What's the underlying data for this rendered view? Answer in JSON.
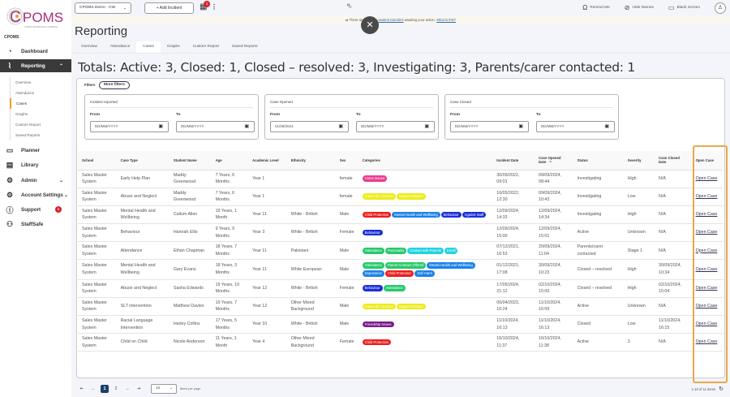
{
  "brand": {
    "logo_text": "CPOMS",
    "logo_sub": "A STAR TECHNOLOGY COMPANY",
    "section": "CPOMS"
  },
  "sidebar": {
    "dashboard": "Dashboard",
    "reporting": "Reporting",
    "reporting_sub": [
      "Overview",
      "Attendance",
      "Cases",
      "Graphs",
      "Custom Report",
      "Saved Reports"
    ],
    "planner": "Planner",
    "library": "Library",
    "admin": "Admin",
    "account_settings": "Account Settings",
    "support": "Support",
    "support_badge": "1",
    "staffsafe": "StaffSafe"
  },
  "topbar": {
    "school_select": "CPOMS Demo - CW",
    "add_incident": "+ Add Incident",
    "notif_count": "1",
    "remind_me": "Remind Me",
    "hide_names": "Hide Names",
    "blank_screen": "Blank Screen"
  },
  "banner": {
    "prefix": "⇄ There are possible ",
    "link": "student transfers",
    "middle": " awaiting your action. ",
    "help_link": "What is this?"
  },
  "page": {
    "title": "Reporting",
    "tabs": [
      "Overview",
      "Attendance",
      "Cases",
      "Graphs",
      "Custom Report",
      "Saved Reports"
    ],
    "active_tab": "Cases",
    "totals": "Totals: Active: 3, Closed: 1, Closed – resolved: 3, Investigating: 3, Parents/carer contacted: 1"
  },
  "filters": {
    "label": "Filters",
    "more_filters": "More filters",
    "groups": [
      {
        "title": "Incident reported",
        "from_label": "From",
        "to_label": "To",
        "from_value": "DD/MM/YYYY",
        "to_value": "DD/MM/YYYY"
      },
      {
        "title": "Case Opened",
        "from_label": "From",
        "to_label": "To",
        "from_value": "01/09/2024",
        "to_value": "DD/MM/YYYY"
      },
      {
        "title": "Case Closed",
        "from_label": "From",
        "to_label": "To",
        "from_value": "DD/MM/YYYY",
        "to_value": "DD/MM/YYYY"
      }
    ]
  },
  "table": {
    "columns": [
      "School",
      "Case Type",
      "Student Name",
      "Age",
      "Academic Level",
      "Ethnicity",
      "Sex",
      "Categories",
      "Incident Date",
      "Case Opened Date",
      "Status",
      "Severity",
      "Case Closed Date",
      "Open Case"
    ],
    "sort_indicator": "^",
    "rows": [
      {
        "school": "Sales Master System",
        "case_type": "Early Help Plan",
        "student": "Maddy Greenwood",
        "age": "7 Years, 6 Months",
        "level": "Year 1",
        "ethnicity": "",
        "sex": "female",
        "categories": [
          {
            "label": "Home Issues",
            "color": "#ee3d8f"
          }
        ],
        "incident_date": "30/09/2022, 09:01",
        "opened": "09/09/2024, 08:44",
        "status": "Investigating",
        "severity": "High",
        "closed": "N/A",
        "link": "Open Case"
      },
      {
        "school": "Sales Master System",
        "case_type": "Abuse and Neglect",
        "student": "Maddy Greenwood",
        "age": "7 Years, 6 Months",
        "level": "Year 1",
        "ethnicity": "",
        "sex": "female",
        "categories": [
          {
            "label": "Cause for Concern",
            "color": "#ecec1a"
          },
          {
            "label": "Neglect Related",
            "color": "#ecec1a"
          }
        ],
        "incident_date": "16/05/2022, 12:30",
        "opened": "09/09/2024, 10:43",
        "status": "Investigating",
        "severity": "Low",
        "closed": "N/A",
        "link": "Open Case"
      },
      {
        "school": "Sales Master System",
        "case_type": "Mental Health and Wellbeing",
        "student": "Callum Allen",
        "age": "19 Years, 1 Month",
        "level": "Year 11",
        "ethnicity": "White - British",
        "sex": "Male",
        "categories": [
          {
            "label": "Child Protection",
            "color": "#ee1c1c"
          },
          {
            "label": "Mental Health and Wellbeing",
            "color": "#1b82e8"
          },
          {
            "label": "Behaviour",
            "color": "#1a2fd8"
          },
          {
            "label": "Against Staff",
            "color": "#1a2fd8"
          }
        ],
        "incident_date": "12/09/2024, 14:33",
        "opened": "12/09/2024, 14:34",
        "status": "Investigating",
        "severity": "High",
        "closed": "N/A",
        "link": "Open Case"
      },
      {
        "school": "Sales Master System",
        "case_type": "Behaviour",
        "student": "Hannah Ellis",
        "age": "9 Years, 9 Months",
        "level": "Year 3",
        "ethnicity": "White - British",
        "sex": "Female",
        "categories": [
          {
            "label": "Behaviour",
            "color": "#1a2fd8"
          }
        ],
        "incident_date": "12/09/2024, 15:00",
        "opened": "12/09/2024, 15:01",
        "status": "Active",
        "severity": "Unknown",
        "closed": "N/A",
        "link": "Open Case"
      },
      {
        "school": "Sales Master System",
        "case_type": "Attendance",
        "student": "Ethan Chapman",
        "age": "18 Years, 7 Months",
        "level": "Year 11",
        "ethnicity": "Pakistani",
        "sex": "Male",
        "categories": [
          {
            "label": "Attendance",
            "color": "#27c96a"
          },
          {
            "label": "Punctuality",
            "color": "#27c96a"
          },
          {
            "label": "Contact with Parents",
            "color": "#22d3e0"
          },
          {
            "label": "Email",
            "color": "#22d3e0"
          }
        ],
        "incident_date": "07/12/2021, 16:53",
        "opened": "20/09/2024, 11:04",
        "status": "Parents/carer contacted",
        "severity": "Stage 1",
        "closed": "N/A",
        "link": "Open Case"
      },
      {
        "school": "Sales Master System",
        "case_type": "Mental Health and Wellbeing",
        "student": "Gary Evans",
        "age": "18 Years, 3 Months",
        "level": "Year 11",
        "ethnicity": "White European",
        "sex": "Male",
        "categories": [
          {
            "label": "Attendance",
            "color": "#27c96a"
          },
          {
            "label": "Parent Contract Offered",
            "color": "#27c96a"
          },
          {
            "label": "Mental Health and Wellbeing",
            "color": "#1b82e8"
          },
          {
            "label": "Depression",
            "color": "#1b82e8"
          },
          {
            "label": "Child Protection",
            "color": "#ee1c1c"
          },
          {
            "label": "Self Harm",
            "color": "#1b82e8"
          }
        ],
        "incident_date": "01/12/2021, 17:08",
        "opened": "30/09/2024, 10:23",
        "status": "Closed – resolved",
        "severity": "High",
        "closed": "30/09/2024, 10:34",
        "link": "Open Case"
      },
      {
        "school": "Sales Master System",
        "case_type": "Abuse and Neglect",
        "student": "Sasha Edwards",
        "age": "19 Years, 10 Months",
        "level": "Year 12",
        "ethnicity": "White - British",
        "sex": "Female",
        "categories": [
          {
            "label": "Behaviour",
            "color": "#1a2fd8"
          },
          {
            "label": "Attendance",
            "color": "#27c96a"
          }
        ],
        "incident_date": "17/05/2024, 21:12",
        "opened": "02/10/2024, 15:00",
        "status": "Closed – resolved",
        "severity": "High",
        "closed": "02/10/2024, 15:04",
        "link": "Open Case"
      },
      {
        "school": "Sales Master System",
        "case_type": "SLT intervention",
        "student": "Matthew Davies",
        "age": "19 Years, 7 Months",
        "level": "Year 12",
        "ethnicity": "Other Mixed Background",
        "sex": "Male",
        "categories": [
          {
            "label": "Cause for Concern",
            "color": "#ecec1a"
          },
          {
            "label": "Neglect Related",
            "color": "#ecec1a"
          }
        ],
        "incident_date": "06/04/2023, 10:24",
        "opened": "11/10/2024, 16:09",
        "status": "Active",
        "severity": "Unknown",
        "closed": "N/A",
        "link": "Open Case"
      },
      {
        "school": "Sales Master System",
        "case_type": "Racial Language Intervention",
        "student": "Harley Collins",
        "age": "17 Years, 5 Months",
        "level": "Year 10",
        "ethnicity": "White - British",
        "sex": "Male",
        "categories": [
          {
            "label": "Friendship Issues",
            "color": "#7a1a8c"
          }
        ],
        "incident_date": "11/10/2024, 16:13",
        "opened": "11/10/2024, 16:13",
        "status": "Closed",
        "severity": "Low",
        "closed": "11/10/2024, 16:15",
        "link": "Open Case"
      },
      {
        "school": "Sales Master System",
        "case_type": "Child on Child",
        "student": "Nicole Anderson",
        "age": "11 Years, 1 Month",
        "level": "Year 4",
        "ethnicity": "Other Mixed Background",
        "sex": "Female",
        "categories": [
          {
            "label": "Child Protection",
            "color": "#ee1c1c"
          }
        ],
        "incident_date": "16/10/2024, 11:37",
        "opened": "16/10/2024, 11:38",
        "status": "Active",
        "severity": "3",
        "closed": "N/A",
        "link": "Open Case"
      }
    ]
  },
  "pagination": {
    "pages": [
      "1",
      "2"
    ],
    "current": "1",
    "per_page": "10",
    "per_page_label": "Items per page",
    "summary": "1-10 of 11 items"
  },
  "colors": {
    "accent": "#f09d2f",
    "highlight": "#e9a74c",
    "brand_purple": "#a8307a",
    "pager_active": "#1b3f6b"
  }
}
